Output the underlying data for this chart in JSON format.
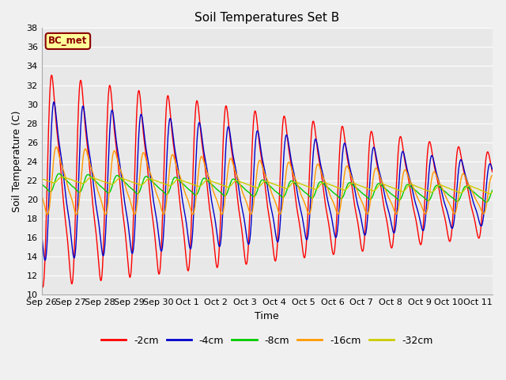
{
  "title": "Soil Temperatures Set B",
  "xlabel": "Time",
  "ylabel": "Soil Temperature (C)",
  "ylim": [
    10,
    38
  ],
  "yticks": [
    10,
    12,
    14,
    16,
    18,
    20,
    22,
    24,
    26,
    28,
    30,
    32,
    34,
    36,
    38
  ],
  "x_labels": [
    "Sep 26",
    "Sep 27",
    "Sep 28",
    "Sep 29",
    "Sep 30",
    "Oct 1",
    "Oct 2",
    "Oct 3",
    "Oct 4",
    "Oct 5",
    "Oct 6",
    "Oct 7",
    "Oct 8",
    "Oct 9",
    "Oct 10",
    "Oct 11"
  ],
  "colors": {
    "-2cm": "#ff0000",
    "-4cm": "#0000cc",
    "-8cm": "#00cc00",
    "-16cm": "#ff9900",
    "-32cm": "#cccc00"
  },
  "legend_label": "BC_met",
  "fig_facecolor": "#f0f0f0",
  "ax_facecolor": "#e8e8e8"
}
